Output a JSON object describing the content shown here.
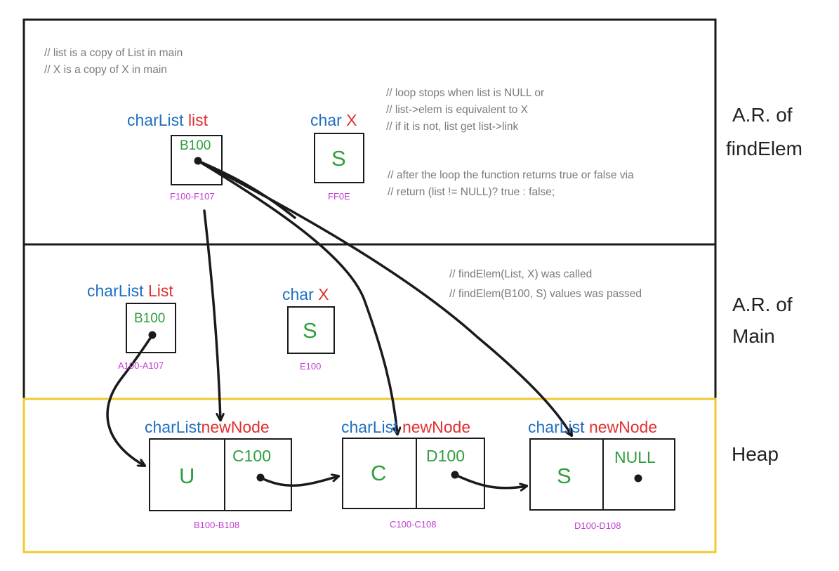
{
  "sections": {
    "find_elem": {
      "label_line1": "A.R. of",
      "label_line2": "findElem"
    },
    "main": {
      "label_line1": "A.R. of",
      "label_line2": "Main"
    },
    "heap": {
      "label": "Heap"
    }
  },
  "find_elem": {
    "comments_top": [
      "// list is a copy of List in main",
      "// X is a copy of X in main"
    ],
    "comments_loop": [
      "// loop stops when list is NULL or",
      "// list->elem is equivalent to X",
      "// if it is not, list get list->link"
    ],
    "comments_return": [
      "// after the loop the function returns true or false via",
      "// return (list != NULL)? true : false;"
    ],
    "list_var": {
      "type": "charList",
      "name": "list",
      "value": "B100",
      "address": "F100-F107"
    },
    "x_var": {
      "type": "char",
      "name": "X",
      "value": "S",
      "address": "FF0E"
    }
  },
  "main": {
    "comments": [
      "// findElem(List, X) was called",
      "// findElem(B100, S) values was passed"
    ],
    "list_var": {
      "type": "charList",
      "name": "List",
      "value": "B100",
      "address": "A100-A107"
    },
    "x_var": {
      "type": "char",
      "name": "X",
      "value": "S",
      "address": "E100"
    }
  },
  "heap": {
    "nodes": [
      {
        "type": "charList",
        "name": "newNode",
        "elem": "U",
        "link": "C100",
        "address": "B100-B108"
      },
      {
        "type": "charList",
        "name": "newNode",
        "elem": "C",
        "link": "D100",
        "address": "C100-C108"
      },
      {
        "type": "charList",
        "name": "newNode",
        "elem": "S",
        "link": "NULL",
        "address": "D100-D108"
      }
    ]
  },
  "colors": {
    "type": "#1f6fc0",
    "name": "#e03030",
    "value": "#2f9e3c",
    "address": "#c040d0",
    "comment": "#7a7a7a",
    "heap_border": "#f2c930"
  }
}
